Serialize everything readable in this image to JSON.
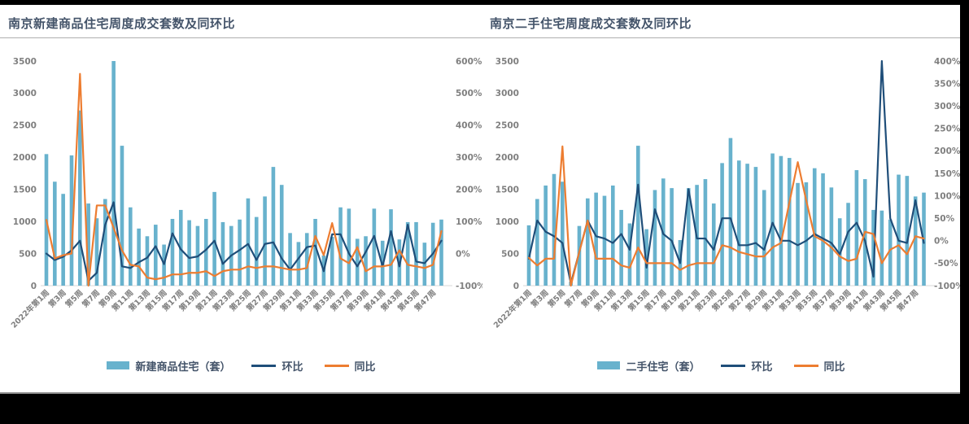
{
  "page": {
    "background": "#000000",
    "canvas_background": "#ffffff"
  },
  "colors": {
    "bar": "#68b2cd",
    "huanbi_line": "#1f4e79",
    "tongbi_line": "#ed7d31",
    "title_text": "#44546a",
    "tick_text": "#7f7f7f",
    "axis_line": "#d9d9d9",
    "title_rule": "#afafaf"
  },
  "charts": [
    {
      "title": "南京新建商品住宅周度成交套数及同环比",
      "legend": {
        "bar_label": "新建商品住宅（套）",
        "huanbi_label": "环比",
        "tongbi_label": "同比"
      },
      "y_axis_left_ticks": [
        "3500",
        "3000",
        "2500",
        "2000",
        "1500",
        "1000",
        "500",
        "0"
      ],
      "y_axis_right_ticks": [
        "600%",
        "500%",
        "400%",
        "300%",
        "200%",
        "100%",
        "0%",
        "-100%"
      ]
    },
    {
      "title": "南京二手住宅周度成交套数及同环比",
      "legend": {
        "bar_label": "二手住宅（套）",
        "huanbi_label": "环比",
        "tongbi_label": "同比"
      },
      "y_axis_left_ticks": [
        "3500",
        "3000",
        "2500",
        "2000",
        "1500",
        "1000",
        "500",
        "0"
      ],
      "y_axis_right_ticks": [
        "400%",
        "350%",
        "300%",
        "250%",
        "200%",
        "150%",
        "100%",
        "50%",
        "0%",
        "-50%",
        "-100%"
      ]
    }
  ],
  "chart_data": [
    {
      "type": "bar+line",
      "title": "南京新建商品住宅周度成交套数及同环比",
      "n_points": 48,
      "x_tick_labels": [
        "2022年第1周",
        "第3周",
        "第5周",
        "第7周",
        "第9周",
        "第11周",
        "第13周",
        "第15周",
        "第17周",
        "第19周",
        "第21周",
        "第23周",
        "第25周",
        "第27周",
        "第29周",
        "第31周",
        "第33周",
        "第35周",
        "第37周",
        "第39周",
        "第41周",
        "第43周",
        "第45周",
        "第47周"
      ],
      "ylim_left": [
        0,
        3500
      ],
      "ylim_right_pct": [
        -100,
        600
      ],
      "legend_position": "bottom",
      "grid": false,
      "series": [
        {
          "name": "新建商品住宅（套）",
          "type": "bar",
          "axis": "left",
          "values": [
            2050,
            1620,
            1430,
            2030,
            2730,
            1280,
            1050,
            1350,
            3500,
            2180,
            1220,
            890,
            770,
            950,
            640,
            1040,
            1180,
            1020,
            930,
            1040,
            1460,
            990,
            930,
            1030,
            1360,
            1070,
            1390,
            1850,
            1570,
            820,
            680,
            820,
            1040,
            470,
            760,
            1220,
            1200,
            730,
            770,
            1200,
            700,
            1190,
            720,
            990,
            990,
            670,
            980,
            1030
          ]
        },
        {
          "name": "环比",
          "type": "line",
          "axis": "right",
          "unit": "%",
          "values": [
            0,
            -20,
            -10,
            10,
            40,
            -85,
            -60,
            90,
            160,
            -40,
            -45,
            -27,
            -13,
            23,
            -33,
            63,
            13,
            -14,
            -9,
            12,
            40,
            -32,
            -6,
            11,
            30,
            -20,
            30,
            35,
            -15,
            -50,
            -15,
            20,
            25,
            -55,
            60,
            60,
            0,
            -40,
            5,
            55,
            -40,
            70,
            -40,
            90,
            -25,
            -30,
            0,
            40
          ]
        },
        {
          "name": "同比",
          "type": "line",
          "axis": "right",
          "unit": "%",
          "values": [
            105,
            -15,
            -5,
            0,
            560,
            -100,
            150,
            150,
            80,
            10,
            -35,
            -40,
            -75,
            -80,
            -75,
            -65,
            -65,
            -60,
            -60,
            -55,
            -70,
            -55,
            -50,
            -50,
            -40,
            -45,
            -40,
            -40,
            -45,
            -50,
            -50,
            -45,
            55,
            -5,
            95,
            -15,
            -30,
            20,
            -55,
            -40,
            -40,
            -35,
            10,
            -35,
            -40,
            -45,
            -35,
            70
          ]
        }
      ]
    },
    {
      "type": "bar+line",
      "title": "南京二手住宅周度成交套数及同环比",
      "n_points": 48,
      "x_tick_labels": [
        "2022年第1周",
        "第3周",
        "第5周",
        "第7周",
        "第9周",
        "第11周",
        "第13周",
        "第15周",
        "第17周",
        "第19周",
        "第21周",
        "第23周",
        "第25周",
        "第27周",
        "第29周",
        "第31周",
        "第33周",
        "第35周",
        "第37周",
        "第39周",
        "第41周",
        "第43周",
        "第45周",
        "第47周"
      ],
      "ylim_left": [
        0,
        3500
      ],
      "ylim_right_pct": [
        -100,
        400
      ],
      "legend_position": "bottom",
      "grid": false,
      "series": [
        {
          "name": "二手住宅（套）",
          "type": "bar",
          "axis": "left",
          "values": [
            940,
            1350,
            1560,
            1740,
            1620,
            60,
            930,
            1360,
            1450,
            1400,
            1560,
            1180,
            970,
            2180,
            880,
            1490,
            1670,
            1520,
            710,
            1520,
            1570,
            1660,
            1280,
            1910,
            2300,
            1950,
            1900,
            1850,
            1490,
            2060,
            2020,
            1990,
            1600,
            1610,
            1830,
            1750,
            1530,
            1050,
            1290,
            1800,
            1660,
            1180,
            1170,
            1030,
            1730,
            1710,
            1390,
            1450
          ]
        },
        {
          "name": "环比",
          "type": "line",
          "axis": "right",
          "unit": "%",
          "values": [
            -40,
            45,
            20,
            10,
            -5,
            -95,
            -25,
            45,
            10,
            5,
            -5,
            15,
            -20,
            125,
            -60,
            70,
            15,
            0,
            -50,
            115,
            5,
            5,
            -20,
            50,
            50,
            -10,
            -10,
            -5,
            -20,
            40,
            0,
            0,
            -10,
            0,
            15,
            5,
            -5,
            -30,
            20,
            40,
            0,
            -80,
            400,
            50,
            0,
            -5,
            90,
            -5
          ]
        },
        {
          "name": "同比",
          "type": "line",
          "axis": "right",
          "unit": "%",
          "values": [
            -38,
            -55,
            -40,
            -40,
            210,
            -100,
            -25,
            45,
            -40,
            -40,
            -40,
            -55,
            -60,
            -15,
            -50,
            -50,
            -50,
            -50,
            -65,
            -55,
            -50,
            -50,
            -50,
            -10,
            -15,
            -25,
            -30,
            -35,
            -35,
            -15,
            -5,
            85,
            175,
            90,
            10,
            0,
            -15,
            -35,
            -45,
            -40,
            20,
            15,
            -50,
            -20,
            -10,
            -30,
            10,
            5
          ]
        }
      ]
    }
  ]
}
